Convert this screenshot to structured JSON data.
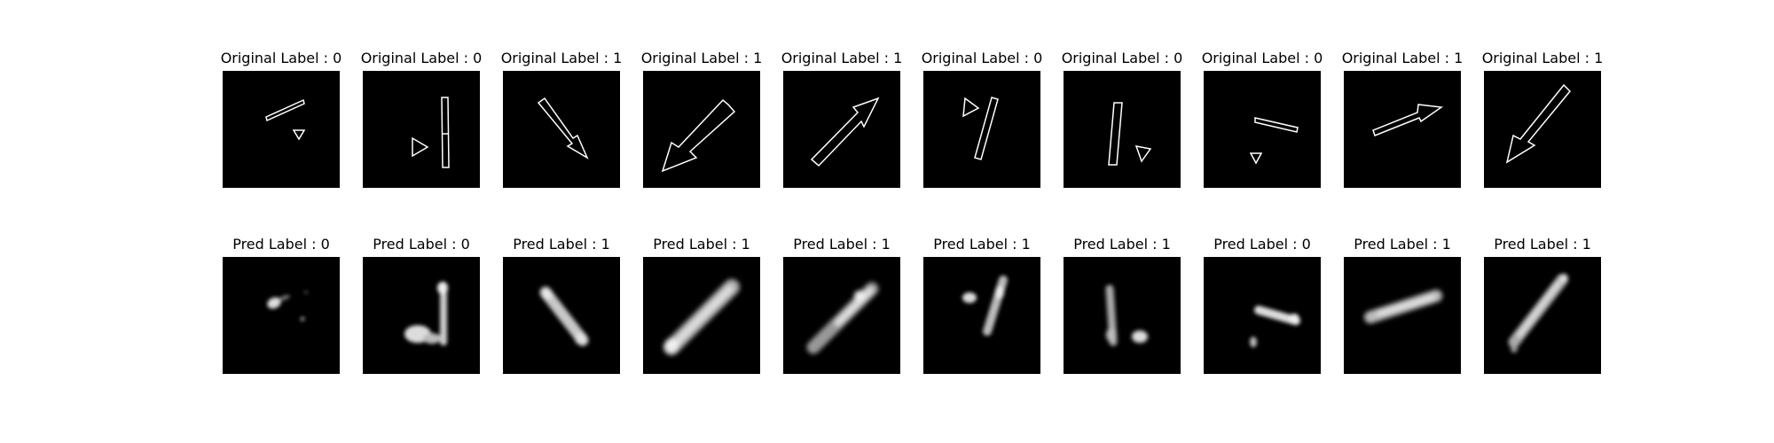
{
  "figure": {
    "background": "#ffffff",
    "panel_background": "#000000",
    "rows": [
      {
        "row_name": "original",
        "panels": [
          {
            "title": "Original Label : 0",
            "shape": "bar-with-triangle",
            "label": 0
          },
          {
            "title": "Original Label : 0",
            "shape": "bar-with-triangle",
            "label": 0
          },
          {
            "title": "Original Label : 1",
            "shape": "arrow",
            "label": 1
          },
          {
            "title": "Original Label : 1",
            "shape": "arrow",
            "label": 1
          },
          {
            "title": "Original Label : 1",
            "shape": "arrow",
            "label": 1
          },
          {
            "title": "Original Label : 0",
            "shape": "bar-with-triangle",
            "label": 0
          },
          {
            "title": "Original Label : 0",
            "shape": "bar-with-triangle",
            "label": 0
          },
          {
            "title": "Original Label : 0",
            "shape": "bar-with-triangle",
            "label": 0
          },
          {
            "title": "Original Label : 1",
            "shape": "arrow",
            "label": 1
          },
          {
            "title": "Original Label : 1",
            "shape": "arrow",
            "label": 1
          }
        ]
      },
      {
        "row_name": "predicted",
        "panels": [
          {
            "title": "Pred Label : 0",
            "shape": "blurry-blob",
            "label": 0
          },
          {
            "title": "Pred Label : 0",
            "shape": "blurry-blob",
            "label": 0
          },
          {
            "title": "Pred Label : 1",
            "shape": "blurry-blob",
            "label": 1
          },
          {
            "title": "Pred Label : 1",
            "shape": "blurry-blob",
            "label": 1
          },
          {
            "title": "Pred Label : 1",
            "shape": "blurry-blob",
            "label": 1
          },
          {
            "title": "Pred Label : 1",
            "shape": "blurry-blob",
            "label": 1
          },
          {
            "title": "Pred Label : 1",
            "shape": "blurry-blob",
            "label": 1
          },
          {
            "title": "Pred Label : 0",
            "shape": "blurry-blob",
            "label": 0
          },
          {
            "title": "Pred Label : 1",
            "shape": "blurry-blob",
            "label": 1
          },
          {
            "title": "Pred Label : 1",
            "shape": "blurry-blob",
            "label": 1
          }
        ]
      }
    ]
  }
}
